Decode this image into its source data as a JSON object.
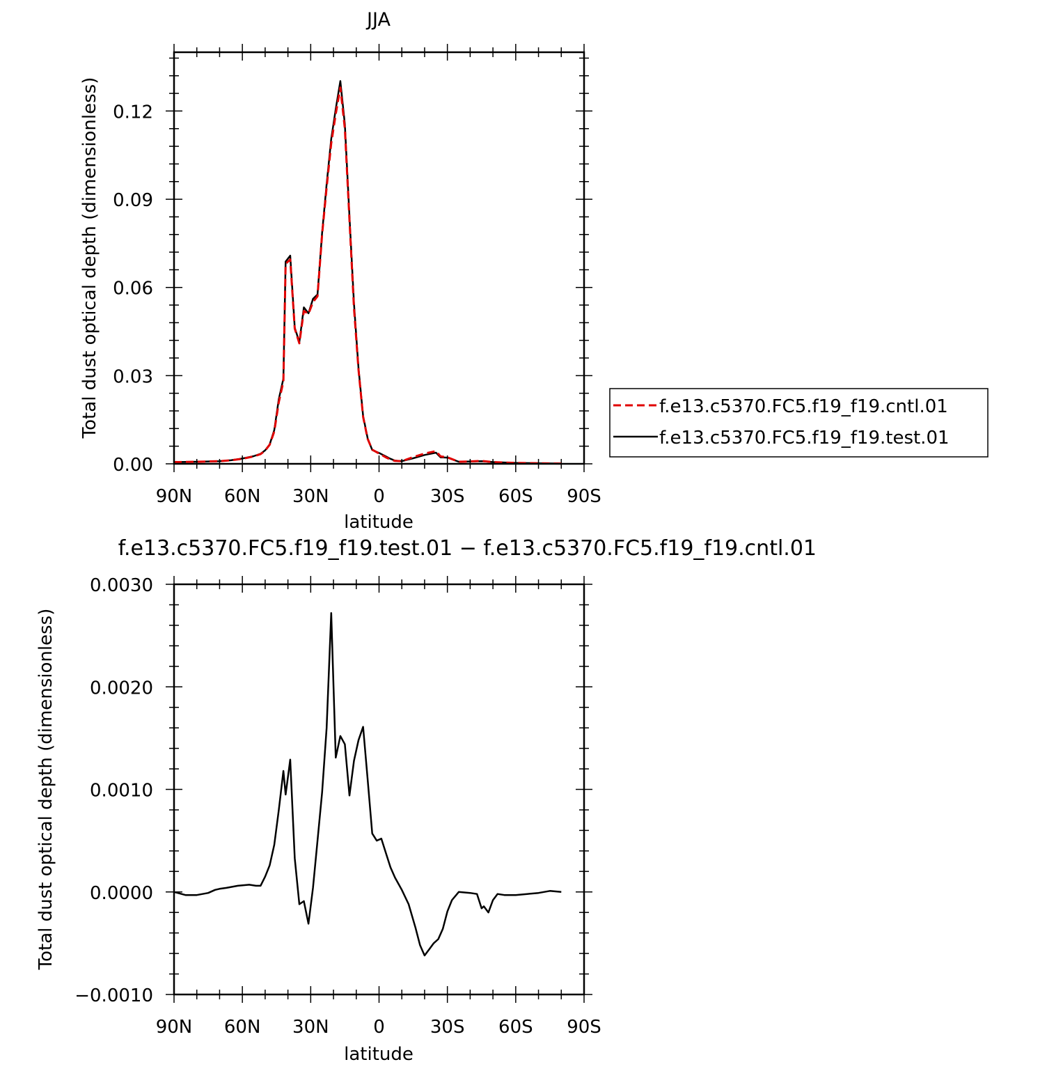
{
  "chart_data": [
    {
      "type": "line",
      "title": "JJA",
      "xlabel": "latitude",
      "ylabel": "Total dust optical depth (dimensionless)",
      "xlim": [
        90,
        -90
      ],
      "ylim": [
        0,
        0.14
      ],
      "x_direction": "north-to-south",
      "xticks": [
        90,
        60,
        30,
        0,
        -30,
        -60,
        -90
      ],
      "xtick_labels": [
        "90N",
        "60N",
        "30N",
        "0",
        "30S",
        "60S",
        "90S"
      ],
      "yticks": [
        0,
        0.03,
        0.06,
        0.09,
        0.12
      ],
      "ytick_labels": [
        "0.00",
        "0.03",
        "0.06",
        "0.09",
        "0.12"
      ],
      "grid": false,
      "legend_position": "right",
      "series": [
        {
          "name": "f.e13.c5370.FC5.f19_f19.cntl.01",
          "color": "#e00000",
          "dash": "dashed",
          "x": [
            90,
            80,
            70,
            65,
            60,
            55,
            52,
            50,
            48,
            46,
            44,
            42,
            41,
            39,
            37,
            35,
            33,
            31,
            29,
            27,
            25,
            23,
            21,
            19,
            17,
            15,
            13,
            11,
            9,
            7,
            5,
            3,
            0,
            -3,
            -5,
            -7,
            -10,
            -15,
            -20,
            -25,
            -27,
            -30,
            -35,
            -40,
            -45,
            -50,
            -60,
            -70,
            -80
          ],
          "y": [
            0.0006,
            0.0007,
            0.0009,
            0.0012,
            0.0017,
            0.0025,
            0.0033,
            0.0045,
            0.0065,
            0.011,
            0.021,
            0.028,
            0.068,
            0.0695,
            0.046,
            0.041,
            0.052,
            0.051,
            0.055,
            0.057,
            0.078,
            0.094,
            0.109,
            0.119,
            0.128,
            0.114,
            0.083,
            0.053,
            0.032,
            0.016,
            0.0085,
            0.0048,
            0.0035,
            0.0022,
            0.0015,
            0.001,
            0.0009,
            0.0023,
            0.0035,
            0.0043,
            0.0025,
            0.0022,
            0.0007,
            0.0008,
            0.001,
            0.0006,
            0.0003,
            0.0002,
            0.0001
          ]
        },
        {
          "name": "f.e13.c5370.FC5.f19_f19.test.01",
          "color": "#000000",
          "dash": "solid",
          "x": [
            90,
            80,
            70,
            65,
            60,
            55,
            52,
            50,
            48,
            46,
            44,
            42,
            41,
            39,
            37,
            35,
            33,
            31,
            29,
            27,
            25,
            23,
            21,
            19,
            17,
            15,
            13,
            11,
            9,
            7,
            5,
            3,
            0,
            -3,
            -5,
            -7,
            -10,
            -15,
            -20,
            -25,
            -27,
            -30,
            -35,
            -40,
            -45,
            -50,
            -60,
            -70,
            -80
          ],
          "y": [
            0.0006,
            0.0007,
            0.0009,
            0.0012,
            0.0018,
            0.0026,
            0.0034,
            0.0046,
            0.0066,
            0.0115,
            0.022,
            0.029,
            0.0688,
            0.0708,
            0.0463,
            0.0414,
            0.0532,
            0.0512,
            0.0561,
            0.0576,
            0.0785,
            0.0951,
            0.1105,
            0.1207,
            0.1302,
            0.1154,
            0.0842,
            0.0545,
            0.0325,
            0.0163,
            0.0087,
            0.0047,
            0.0037,
            0.0025,
            0.0017,
            0.0011,
            0.0009,
            0.0019,
            0.003,
            0.0038,
            0.0022,
            0.0021,
            0.0007,
            0.0008,
            0.0009,
            0.0006,
            0.0003,
            0.0002,
            0.0001
          ]
        }
      ]
    },
    {
      "type": "line",
      "title": "f.e13.c5370.FC5.f19_f19.test.01 − f.e13.c5370.FC5.f19_f19.cntl.01",
      "xlabel": "latitude",
      "ylabel": "Total dust optical depth (dimensionless)",
      "xlim": [
        90,
        -90
      ],
      "ylim": [
        -0.001,
        0.003
      ],
      "x_direction": "north-to-south",
      "xticks": [
        90,
        60,
        30,
        0,
        -30,
        -60,
        -90
      ],
      "xtick_labels": [
        "90N",
        "60N",
        "30N",
        "0",
        "30S",
        "60S",
        "90S"
      ],
      "yticks": [
        -0.001,
        0,
        0.001,
        0.002,
        0.003
      ],
      "ytick_labels": [
        "−0.0010",
        "0.0000",
        "0.0010",
        "0.0020",
        "0.0030"
      ],
      "grid": false,
      "series": [
        {
          "color": "#000000",
          "dash": "solid",
          "x": [
            90,
            85,
            80,
            75,
            72,
            70,
            67,
            62,
            57,
            54,
            52,
            50,
            48,
            46,
            44,
            42,
            41,
            39,
            37,
            35,
            33,
            31,
            29,
            27,
            25,
            23,
            21,
            19,
            17,
            15,
            13,
            11,
            9,
            7,
            5,
            3,
            1,
            -1,
            -3,
            -5,
            -7,
            -10,
            -13,
            -16,
            -18,
            -20,
            -22,
            -24,
            -26,
            -28,
            -30,
            -32,
            -35,
            -40,
            -43,
            -45,
            -46,
            -48,
            -50,
            -52,
            -55,
            -60,
            -65,
            -70,
            -75,
            -80
          ],
          "y": [
            0,
            -3e-05,
            -3e-05,
            -1e-05,
            2e-05,
            3e-05,
            4e-05,
            6e-05,
            7e-05,
            6e-05,
            6e-05,
            0.00015,
            0.00026,
            0.00046,
            0.0008,
            0.00118,
            0.00095,
            0.00129,
            0.00033,
            -0.00012,
            -9e-05,
            -0.00031,
            4e-05,
            0.0005,
            0.00097,
            0.0016,
            0.00272,
            0.00131,
            0.00152,
            0.00144,
            0.00094,
            0.00128,
            0.00148,
            0.00161,
            0.0011,
            0.00057,
            0.0005,
            0.00052,
            0.00038,
            0.00024,
            0.00014,
            2e-05,
            -0.00012,
            -0.00035,
            -0.00052,
            -0.00062,
            -0.00056,
            -0.0005,
            -0.00046,
            -0.00036,
            -0.00019,
            -8e-05,
            0,
            -1e-05,
            -2e-05,
            -0.00016,
            -0.00014,
            -0.0002,
            -8e-05,
            -2e-05,
            -3e-05,
            -3e-05,
            -2e-05,
            -1e-05,
            1e-05,
            0
          ]
        }
      ]
    }
  ]
}
